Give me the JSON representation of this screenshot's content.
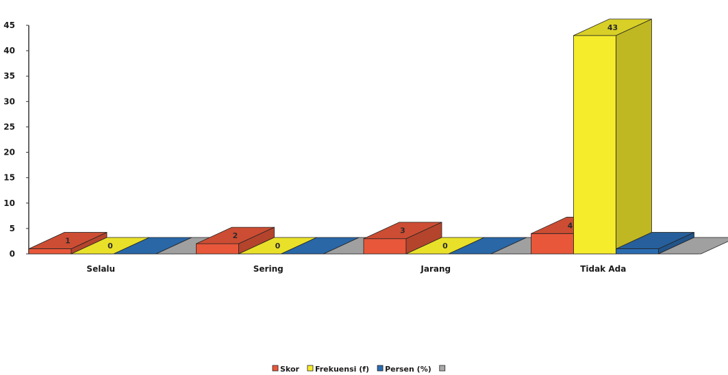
{
  "chart_data": {
    "type": "bar",
    "categories": [
      "Selalu",
      "Sering",
      "Jarang",
      "Tidak Ada"
    ],
    "series": [
      {
        "name": "Skor",
        "values": [
          1,
          2,
          3,
          4
        ],
        "color": "#e8573a"
      },
      {
        "name": "Frekuensi (f)",
        "values": [
          0,
          0,
          0,
          43
        ],
        "color": "#f5ec2c"
      },
      {
        "name": "Persen (%)",
        "values": [
          0,
          0,
          0,
          1
        ],
        "color": "#2b6cb0"
      },
      {
        "name": "",
        "values": [
          0,
          0,
          0,
          0
        ],
        "color": "#a8a8a8"
      }
    ],
    "data_labels": [
      [
        "1",
        "0",
        "",
        ""
      ],
      [
        "2",
        "0",
        "",
        ""
      ],
      [
        "3",
        "0",
        "",
        ""
      ],
      [
        "4",
        "43",
        "",
        ""
      ]
    ],
    "ylim": [
      0,
      45
    ],
    "yticks": [
      0,
      5,
      10,
      15,
      20,
      25,
      30,
      35,
      40,
      45
    ],
    "title": "",
    "xlabel": "",
    "ylabel": "",
    "grid": false,
    "legend_position": "bottom",
    "three_d": true
  }
}
